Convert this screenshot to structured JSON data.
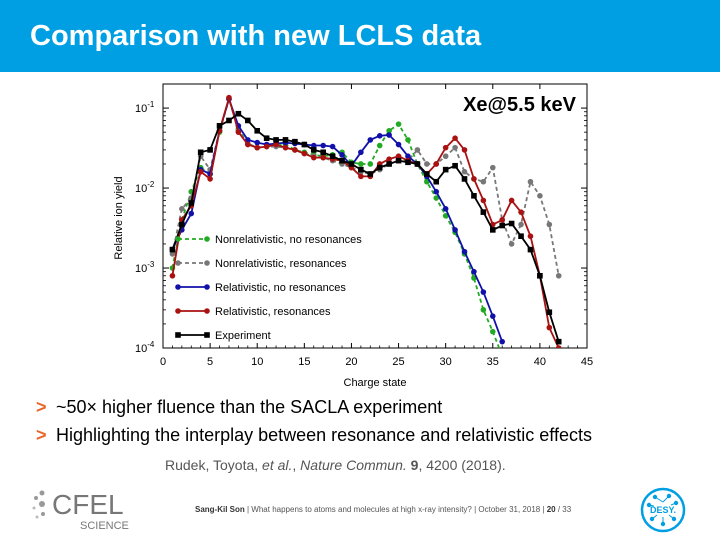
{
  "slide": {
    "title": "Comparison with new LCLS data",
    "bullets": [
      {
        "marker": ">",
        "text": "~50× higher fluence than the SACLA experiment"
      },
      {
        "marker": ">",
        "text": "Highlighting the interplay between resonance and relativistic effects"
      }
    ],
    "citation": {
      "authors": "Rudek, Toyota, ",
      "etal": "et al.",
      "sep": ", ",
      "journal": "Nature Commun.",
      "volume": "9",
      "rest": ", 4200 (2018)."
    },
    "footer": {
      "presenter": "Sang-Kil Son",
      "talk": " | What happens to atoms and molecules at high x-ray intensity? | October 31, 2018 | ",
      "page": "20",
      "total": " / 33"
    },
    "logos": {
      "cfel_main": "CFEL",
      "cfel_sub": "SCIENCE",
      "desy": "DESY."
    }
  },
  "colors": {
    "header": "#009fe3",
    "bullet_marker": "#e8662a",
    "nonrel_nores": "#22aa22",
    "nonrel_res": "#777777",
    "rel_nores": "#1111aa",
    "rel_res": "#aa1111",
    "experiment": "#000000"
  },
  "chart_data": {
    "type": "line",
    "title": "Xe@5.5 keV",
    "xlabel": "Charge state",
    "ylabel": "Relative ion yield",
    "xlim": [
      0,
      45
    ],
    "ylim": [
      0.0001,
      0.2
    ],
    "yscale": "log",
    "xticks": [
      0,
      5,
      10,
      15,
      20,
      25,
      30,
      35,
      40,
      45
    ],
    "yticks": [
      {
        "value": 0.1,
        "base": "10",
        "exp": "-1"
      },
      {
        "value": 0.01,
        "base": "10",
        "exp": "-2"
      },
      {
        "value": 0.001,
        "base": "10",
        "exp": "-3"
      },
      {
        "value": 0.0001,
        "base": "10",
        "exp": "-4"
      }
    ],
    "legend_position": "bottom-left",
    "series": [
      {
        "name": "Nonrelativistic, no resonances",
        "color": "#22aa22",
        "dashed": true,
        "marker": "circle",
        "x": [
          1,
          2,
          3,
          4,
          5,
          6,
          7,
          8,
          9,
          10,
          11,
          12,
          13,
          14,
          15,
          16,
          17,
          18,
          19,
          20,
          21,
          22,
          23,
          24,
          25,
          26,
          27,
          28,
          29,
          30,
          31,
          32,
          33,
          34,
          35,
          36
        ],
        "y": [
          0.001,
          0.004,
          0.009,
          0.018,
          0.015,
          0.05,
          0.13,
          0.055,
          0.036,
          0.032,
          0.033,
          0.034,
          0.035,
          0.03,
          0.028,
          0.026,
          0.025,
          0.026,
          0.028,
          0.021,
          0.02,
          0.02,
          0.034,
          0.052,
          0.063,
          0.04,
          0.02,
          0.012,
          0.0075,
          0.0045,
          0.0028,
          0.0015,
          0.00075,
          0.0003,
          0.00016,
          8e-05
        ]
      },
      {
        "name": "Nonrelativistic, resonances",
        "color": "#777777",
        "dashed": true,
        "marker": "circle",
        "x": [
          1,
          2,
          3,
          4,
          5,
          6,
          7,
          8,
          9,
          10,
          11,
          12,
          13,
          14,
          15,
          16,
          17,
          18,
          19,
          20,
          21,
          22,
          23,
          24,
          25,
          26,
          27,
          28,
          29,
          30,
          31,
          32,
          33,
          34,
          35,
          36,
          37,
          38,
          39,
          40,
          41,
          42
        ],
        "y": [
          0.0015,
          0.0055,
          0.0075,
          0.025,
          0.017,
          0.052,
          0.13,
          0.052,
          0.036,
          0.032,
          0.033,
          0.033,
          0.032,
          0.03,
          0.027,
          0.025,
          0.024,
          0.022,
          0.02,
          0.018,
          0.016,
          0.015,
          0.017,
          0.02,
          0.022,
          0.022,
          0.03,
          0.02,
          0.02,
          0.025,
          0.032,
          0.016,
          0.013,
          0.012,
          0.018,
          0.004,
          0.002,
          0.0035,
          0.012,
          0.008,
          0.0035,
          0.0008
        ]
      },
      {
        "name": "Relativistic, no resonances",
        "color": "#1111aa",
        "dashed": false,
        "marker": "circle",
        "x": [
          1,
          2,
          3,
          4,
          5,
          6,
          7,
          8,
          9,
          10,
          11,
          12,
          13,
          14,
          15,
          16,
          17,
          18,
          19,
          20,
          21,
          22,
          23,
          24,
          25,
          26,
          27,
          28,
          29,
          30,
          31,
          32,
          33,
          34,
          35,
          36
        ],
        "y": [
          0.0017,
          0.003,
          0.0048,
          0.017,
          0.015,
          0.052,
          0.13,
          0.06,
          0.04,
          0.037,
          0.035,
          0.036,
          0.037,
          0.036,
          0.035,
          0.034,
          0.034,
          0.033,
          0.026,
          0.019,
          0.028,
          0.04,
          0.045,
          0.046,
          0.035,
          0.025,
          0.02,
          0.014,
          0.009,
          0.0055,
          0.003,
          0.0016,
          0.0009,
          0.0005,
          0.00025,
          0.00012
        ]
      },
      {
        "name": "Relativistic, resonances",
        "color": "#aa1111",
        "dashed": false,
        "marker": "circle",
        "x": [
          1,
          2,
          3,
          4,
          5,
          6,
          7,
          8,
          9,
          10,
          11,
          12,
          13,
          14,
          15,
          16,
          17,
          18,
          19,
          20,
          21,
          22,
          23,
          24,
          25,
          26,
          27,
          28,
          29,
          30,
          31,
          32,
          33,
          34,
          35,
          36,
          37,
          38,
          39,
          40,
          41,
          42
        ],
        "y": [
          0.0008,
          0.004,
          0.006,
          0.016,
          0.013,
          0.052,
          0.135,
          0.05,
          0.035,
          0.032,
          0.033,
          0.035,
          0.032,
          0.03,
          0.027,
          0.024,
          0.024,
          0.023,
          0.022,
          0.018,
          0.014,
          0.014,
          0.02,
          0.023,
          0.025,
          0.022,
          0.02,
          0.015,
          0.02,
          0.032,
          0.042,
          0.03,
          0.013,
          0.007,
          0.0035,
          0.004,
          0.007,
          0.005,
          0.0025,
          0.0008,
          0.00018,
          0.0001
        ]
      },
      {
        "name": "Experiment",
        "color": "#000000",
        "dashed": false,
        "marker": "square",
        "x": [
          1,
          2,
          3,
          4,
          5,
          6,
          7,
          8,
          9,
          10,
          11,
          12,
          13,
          14,
          15,
          16,
          17,
          18,
          19,
          20,
          21,
          22,
          23,
          24,
          25,
          26,
          27,
          28,
          29,
          30,
          31,
          32,
          33,
          34,
          35,
          36,
          37,
          38,
          39,
          40,
          41,
          42
        ],
        "y": [
          0.0017,
          0.0035,
          0.0065,
          0.028,
          0.03,
          0.06,
          0.07,
          0.085,
          0.07,
          0.052,
          0.042,
          0.04,
          0.04,
          0.038,
          0.035,
          0.03,
          0.028,
          0.025,
          0.022,
          0.02,
          0.017,
          0.015,
          0.018,
          0.02,
          0.022,
          0.021,
          0.02,
          0.015,
          0.012,
          0.017,
          0.019,
          0.013,
          0.008,
          0.005,
          0.003,
          0.0034,
          0.0036,
          0.0025,
          0.0017,
          0.0008,
          0.00028,
          0.00012
        ]
      }
    ]
  }
}
